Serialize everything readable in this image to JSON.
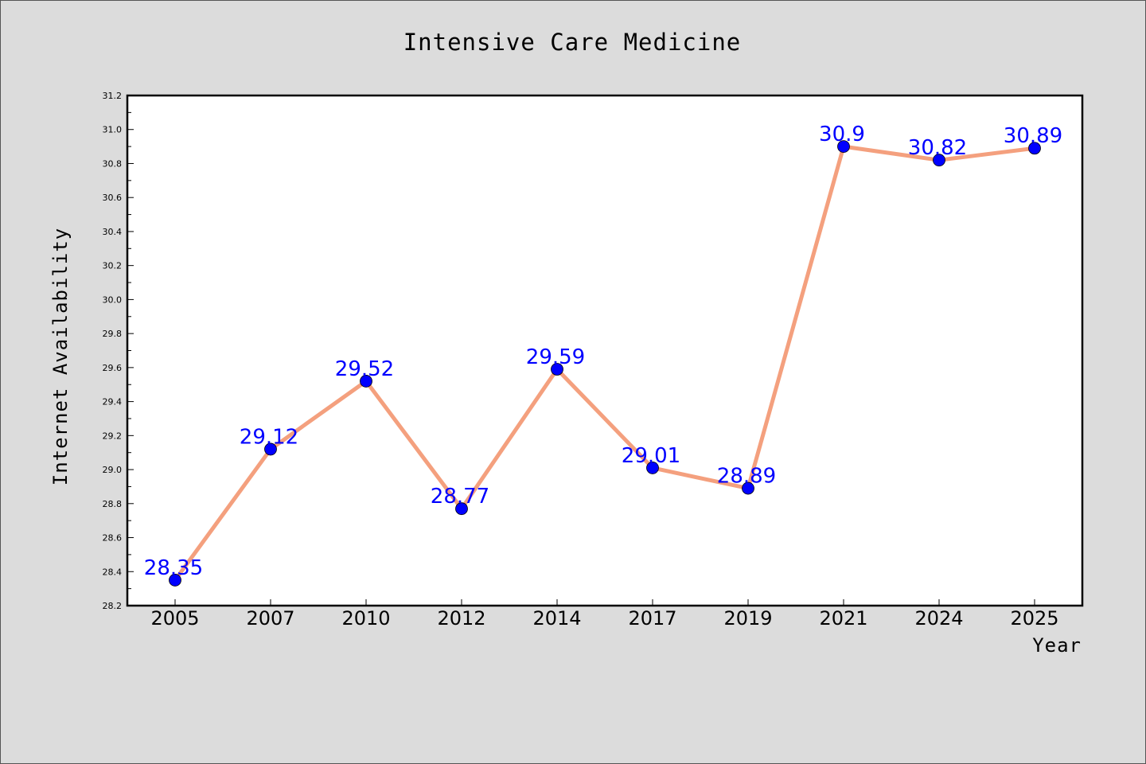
{
  "chart_data": {
    "type": "line",
    "title": "Intensive Care Medicine",
    "xlabel": "Year",
    "ylabel": "Internet Availability",
    "categories": [
      "2005",
      "2007",
      "2010",
      "2012",
      "2014",
      "2017",
      "2019",
      "2021",
      "2024",
      "2025"
    ],
    "series": [
      {
        "values": [
          28.35,
          29.12,
          29.52,
          28.77,
          29.59,
          29.01,
          28.89,
          30.9,
          30.82,
          30.89
        ],
        "labels": [
          "28.35",
          "29.12",
          "29.52",
          "28.77",
          "29.59",
          "29.01",
          "28.89",
          "30.9",
          "30.82",
          "30.89"
        ],
        "line_color": "#f4a07e",
        "marker_color": "#0000ff",
        "label_color": "#0000ff"
      }
    ],
    "ylim": [
      28.2,
      31.2
    ],
    "yticks": [
      "28.2",
      "28.4",
      "28.6",
      "28.8",
      "29.0",
      "29.2",
      "29.4",
      "29.6",
      "29.8",
      "30.0",
      "30.2",
      "30.4",
      "30.6",
      "30.8",
      "31.0",
      "31.2"
    ],
    "grid": false,
    "legend": "none",
    "background": "#dcdcdc",
    "plot_background": "#ffffff"
  }
}
